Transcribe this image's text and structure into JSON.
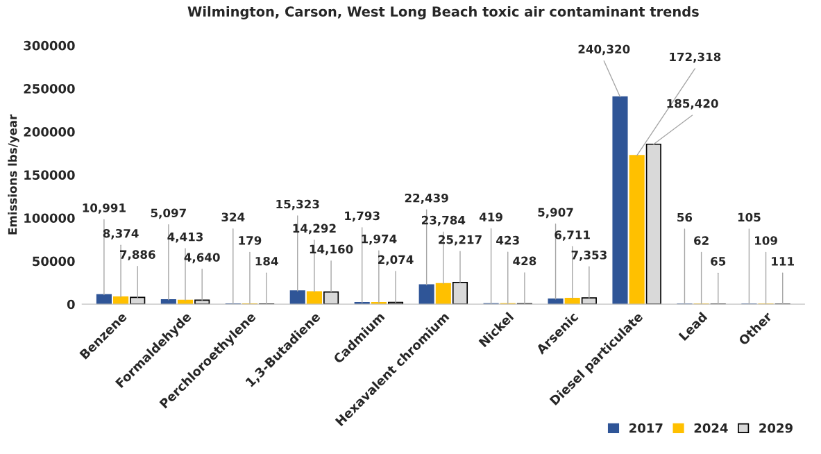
{
  "chart_data": {
    "type": "bar",
    "title": "Wilmington, Carson, West Long Beach toxic air contaminant trends",
    "ylabel": "Emissions lbs/year",
    "categories": [
      "Benzene",
      "Formaldehyde",
      "Perchloroethylene",
      "1,3-Butadiene",
      "Cadmium",
      "Hexavalent chromium",
      "Nickel",
      "Arsenic",
      "Diesel particulate",
      "Lead",
      "Other"
    ],
    "series": [
      {
        "name": "2017",
        "color": "#2f5597",
        "values": [
          10991,
          5097,
          324,
          15323,
          1793,
          22439,
          419,
          5907,
          240320,
          56,
          105
        ],
        "value_labels": [
          "10,991",
          "5,097",
          "324",
          "15,323",
          "1,793",
          "22,439",
          "419",
          "5,907",
          "240,320",
          "56",
          "105"
        ]
      },
      {
        "name": "2024",
        "color": "#ffc000",
        "values": [
          8374,
          4413,
          179,
          14292,
          1974,
          23784,
          423,
          6711,
          172318,
          62,
          109
        ],
        "value_labels": [
          "8,374",
          "4,413",
          "179",
          "14,292",
          "1,974",
          "23,784",
          "423",
          "6,711",
          "172,318",
          "62",
          "109"
        ]
      },
      {
        "name": "2029",
        "color": "#d9d9d9",
        "values": [
          7886,
          4640,
          184,
          14160,
          2074,
          25217,
          428,
          7353,
          185420,
          65,
          111
        ],
        "value_labels": [
          "7,886",
          "4,640",
          "184",
          "14,160",
          "2,074",
          "25,217",
          "428",
          "7,353",
          "185,420",
          "65",
          "111"
        ]
      }
    ],
    "ylim": [
      0,
      300000
    ],
    "yticks": [
      0,
      50000,
      100000,
      150000,
      200000,
      250000,
      300000
    ],
    "grid": false,
    "legend": "bottom right"
  }
}
